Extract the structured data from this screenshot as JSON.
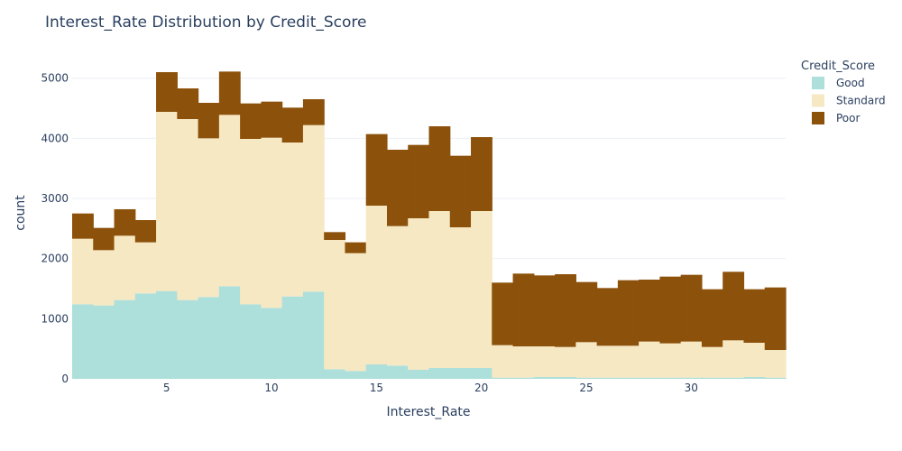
{
  "chart_data": {
    "type": "bar",
    "stacked": true,
    "title": "Interest_Rate Distribution by Credit_Score",
    "xlabel": "Interest_Rate",
    "ylabel": "count",
    "xlim": [
      0.5,
      34.5
    ],
    "ylim": [
      0,
      5400
    ],
    "xticks": [
      5,
      10,
      15,
      20,
      25,
      30
    ],
    "yticks": [
      0,
      1000,
      2000,
      3000,
      4000,
      5000
    ],
    "grid": true,
    "legend": {
      "title": "Credit_Score",
      "position": "top-right"
    },
    "x": [
      1,
      2,
      3,
      4,
      5,
      6,
      7,
      8,
      9,
      10,
      11,
      12,
      13,
      14,
      15,
      16,
      17,
      18,
      19,
      20,
      21,
      22,
      23,
      24,
      25,
      26,
      27,
      28,
      29,
      30,
      31,
      32,
      33,
      34
    ],
    "series": [
      {
        "name": "Good",
        "color": "#addfdb",
        "values": [
          1240,
          1220,
          1310,
          1420,
          1460,
          1310,
          1360,
          1540,
          1240,
          1180,
          1370,
          1450,
          160,
          130,
          240,
          220,
          150,
          180,
          180,
          180,
          20,
          20,
          30,
          30,
          20,
          20,
          20,
          20,
          20,
          20,
          20,
          20,
          30,
          20
        ]
      },
      {
        "name": "Standard",
        "color": "#f6e8c3",
        "values": [
          1090,
          920,
          1070,
          850,
          2980,
          3010,
          2640,
          2850,
          2750,
          2830,
          2560,
          2770,
          2150,
          1960,
          2640,
          2320,
          2520,
          2610,
          2340,
          2610,
          540,
          520,
          510,
          500,
          590,
          530,
          530,
          600,
          570,
          600,
          510,
          620,
          570,
          460
        ]
      },
      {
        "name": "Poor",
        "color": "#8c510a",
        "values": [
          420,
          370,
          440,
          370,
          660,
          510,
          590,
          720,
          590,
          600,
          580,
          430,
          130,
          180,
          1190,
          1270,
          1220,
          1410,
          1190,
          1230,
          1040,
          1210,
          1180,
          1210,
          1000,
          960,
          1090,
          1030,
          1110,
          1110,
          960,
          1140,
          890,
          1040
        ]
      }
    ]
  }
}
